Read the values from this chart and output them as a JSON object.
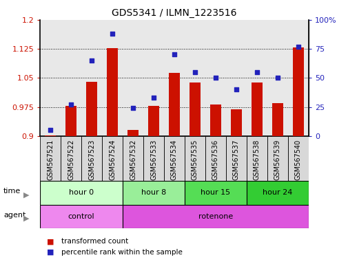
{
  "title": "GDS5341 / ILMN_1223516",
  "samples": [
    "GSM567521",
    "GSM567522",
    "GSM567523",
    "GSM567524",
    "GSM567532",
    "GSM567533",
    "GSM567534",
    "GSM567535",
    "GSM567536",
    "GSM567537",
    "GSM567538",
    "GSM567539",
    "GSM567540"
  ],
  "transformed_count": [
    0.902,
    0.978,
    1.04,
    1.127,
    0.915,
    0.977,
    1.063,
    1.038,
    0.982,
    0.968,
    1.038,
    0.984,
    1.128
  ],
  "percentile_rank": [
    5,
    27,
    65,
    88,
    24,
    33,
    70,
    55,
    50,
    40,
    55,
    50,
    77
  ],
  "ylim_left": [
    0.9,
    1.2
  ],
  "ylim_right": [
    0,
    100
  ],
  "yticks_left": [
    0.9,
    0.975,
    1.05,
    1.125,
    1.2
  ],
  "yticks_right": [
    0,
    25,
    50,
    75,
    100
  ],
  "ytick_labels_left": [
    "0.9",
    "0.975",
    "1.05",
    "1.125",
    "1.2"
  ],
  "ytick_labels_right": [
    "0",
    "25",
    "50",
    "75",
    "100%"
  ],
  "bar_color": "#cc1100",
  "dot_color": "#2222bb",
  "plot_bg": "#ffffff",
  "time_groups": [
    {
      "label": "hour 0",
      "start": 0,
      "end": 4,
      "color": "#ccffcc"
    },
    {
      "label": "hour 8",
      "start": 4,
      "end": 7,
      "color": "#99ee99"
    },
    {
      "label": "hour 15",
      "start": 7,
      "end": 10,
      "color": "#55dd55"
    },
    {
      "label": "hour 24",
      "start": 10,
      "end": 13,
      "color": "#33cc33"
    }
  ],
  "agent_groups": [
    {
      "label": "control",
      "start": 0,
      "end": 4,
      "color": "#ee88ee"
    },
    {
      "label": "rotenone",
      "start": 4,
      "end": 13,
      "color": "#dd55dd"
    }
  ],
  "legend_items": [
    {
      "label": "transformed count",
      "color": "#cc1100"
    },
    {
      "label": "percentile rank within the sample",
      "color": "#2222bb"
    }
  ]
}
